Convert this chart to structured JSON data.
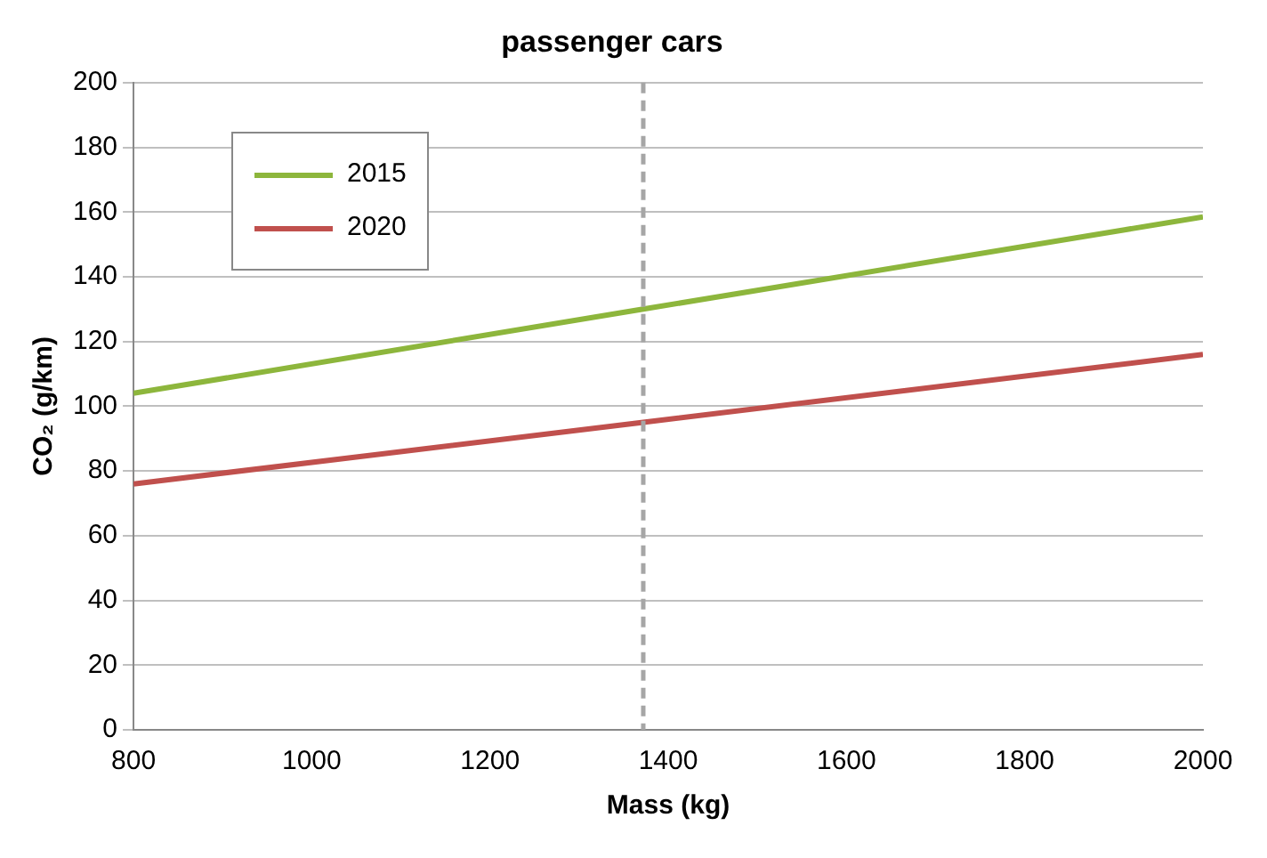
{
  "chart_data": {
    "type": "line",
    "title": "passenger cars",
    "xlabel": "Mass (kg)",
    "ylabel": "CO₂ (g/km)",
    "x": [
      800,
      1372,
      2000
    ],
    "series": [
      {
        "name": "2015",
        "color": "#8db63c",
        "values": [
          104,
          130,
          158.5
        ]
      },
      {
        "name": "2020",
        "color": "#c0504d",
        "values": [
          76,
          95,
          116
        ]
      }
    ],
    "xlim": [
      800,
      2000
    ],
    "xticks": [
      800,
      1000,
      1200,
      1400,
      1600,
      1800,
      2000
    ],
    "ylim": [
      0,
      200
    ],
    "yticks": [
      0,
      20,
      40,
      60,
      80,
      100,
      120,
      140,
      160,
      180,
      200
    ],
    "grid": "y",
    "legend": "top left",
    "marker": "none",
    "line_style": "solid",
    "ref_lines": [
      {
        "axis": "x",
        "value": 1372,
        "color": "#a6a6a6",
        "line_style": "dashed"
      }
    ]
  }
}
